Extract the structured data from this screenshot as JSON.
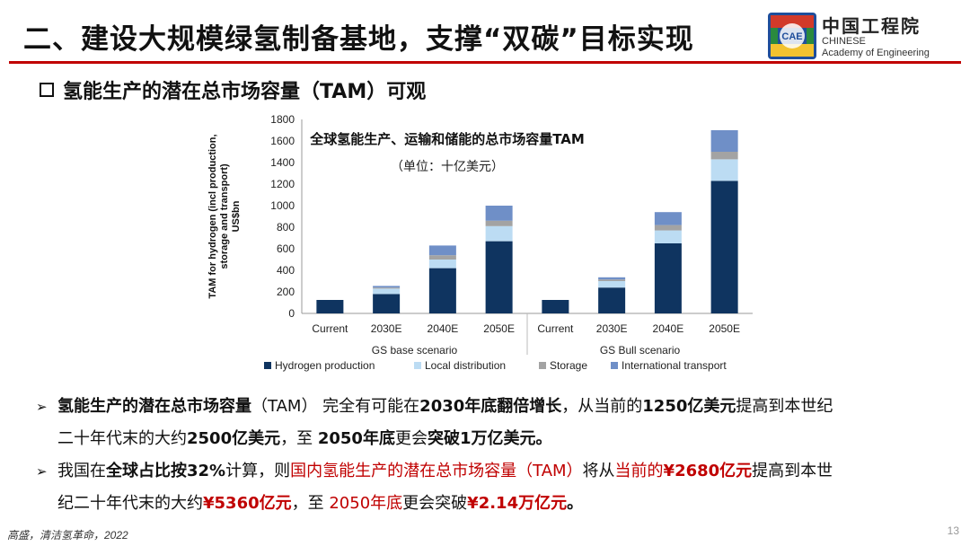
{
  "header": {
    "title": "二、建设大规模绿氢制备基地，支撑“双碳”目标实现",
    "logo": {
      "emblem_text": "CAE",
      "emblem_colors": [
        "#1f4e9b",
        "#d23a2a",
        "#f2c230",
        "#2a8a3e"
      ],
      "name_cn": "中国工程院",
      "name_en_line1": "CHINESE",
      "name_en_line2": "Academy of Engineering"
    },
    "rule_color": "#c00000"
  },
  "subheading": "氢能生产的潜在总市场容量（TAM）可观",
  "chart_data": {
    "type": "bar",
    "stacked": true,
    "title": "全球氢能生产、运输和储能的总市场容量TAM",
    "subtitle": "（单位：十亿美元）",
    "ylabel_lines": [
      "TAM for hydrogen (incl production,",
      "storage and transport)",
      "US$bn"
    ],
    "ylim": [
      0,
      1800
    ],
    "yticks": [
      0,
      200,
      400,
      600,
      800,
      1000,
      1200,
      1400,
      1600,
      1800
    ],
    "categories": [
      "Current",
      "2030E",
      "2040E",
      "2050E",
      "Current",
      "2030E",
      "2040E",
      "2050E"
    ],
    "groups": [
      {
        "label": "GS base scenario",
        "categories": [
          "Current",
          "2030E",
          "2040E",
          "2050E"
        ]
      },
      {
        "label": "GS Bull scenario",
        "categories": [
          "Current",
          "2030E",
          "2040E",
          "2050E"
        ]
      }
    ],
    "series": [
      {
        "name": "Hydrogen production",
        "color": "#0f3460",
        "values": [
          125,
          180,
          420,
          670,
          125,
          240,
          650,
          1230
        ]
      },
      {
        "name": "Local distribution",
        "color": "#bcdcf3",
        "values": [
          0,
          50,
          80,
          140,
          0,
          60,
          120,
          200
        ]
      },
      {
        "name": "Storage",
        "color": "#a3a3a3",
        "values": [
          0,
          10,
          40,
          50,
          0,
          15,
          50,
          70
        ]
      },
      {
        "name": "International transport",
        "color": "#6f8fc7",
        "values": [
          0,
          15,
          90,
          140,
          0,
          20,
          120,
          200
        ]
      }
    ],
    "grid": false,
    "legend_placement": "bottom"
  },
  "bullets": [
    {
      "marker": "➢",
      "line1": [
        {
          "text": "氢能生产的潜在总市场容量",
          "bold": true
        },
        {
          "text": "（TAM） 完全有可能在"
        },
        {
          "text": "2030年底翻倍增长",
          "bold": true
        },
        {
          "text": "，从当前的"
        },
        {
          "text": "1250亿美元",
          "bold": true
        },
        {
          "text": "提高到本世纪"
        }
      ],
      "line2": [
        {
          "text": "二十年代末的大约"
        },
        {
          "text": "2500亿美元",
          "bold": true
        },
        {
          "text": "，至 "
        },
        {
          "text": "2050年底",
          "bold": true
        },
        {
          "text": "更会"
        },
        {
          "text": "突破1万亿美元。",
          "bold": true
        }
      ]
    },
    {
      "marker": "➢",
      "line1": [
        {
          "text": "我国在"
        },
        {
          "text": "全球占比按32%",
          "bold": true
        },
        {
          "text": "计算，则"
        },
        {
          "text": "国内氢能生产的潜在总市场容量（TAM）",
          "red": true
        },
        {
          "text": "将从"
        },
        {
          "text": "当前的",
          "red": true
        },
        {
          "text": "¥2680亿元",
          "red": true,
          "bold": true
        },
        {
          "text": "提高到本世"
        }
      ],
      "line2": [
        {
          "text": "纪二十年代末的大约"
        },
        {
          "text": "¥5360亿元",
          "red": true,
          "bold": true
        },
        {
          "text": "，至 "
        },
        {
          "text": "2050年底",
          "red": true
        },
        {
          "text": "更会突破"
        },
        {
          "text": "¥2.14万亿元",
          "red": true,
          "bold": true
        },
        {
          "text": "。",
          "bold": true
        }
      ]
    }
  ],
  "footer": {
    "citation": "高盛，清洁氢革命，2022",
    "page_number": "13"
  }
}
